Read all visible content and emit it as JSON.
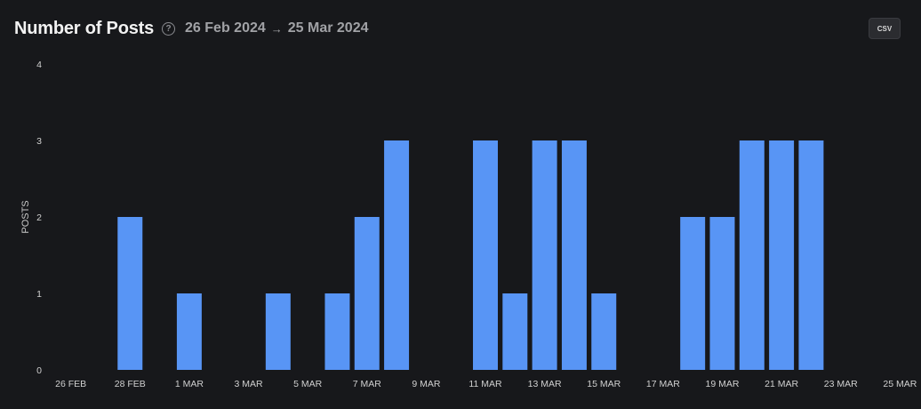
{
  "header": {
    "title": "Number of Posts",
    "help_icon": "question-circle-icon",
    "range_start": "26 Feb 2024",
    "range_arrow": "→",
    "range_end": "25 Mar 2024"
  },
  "toolbar": {
    "csv_label": "CSV"
  },
  "colors": {
    "background": "#17181b",
    "bar": "#5895f5",
    "text": "#d0d0d0"
  },
  "chart_data": {
    "type": "bar",
    "title": "Number of Posts",
    "xlabel": "",
    "ylabel": "POSTS",
    "ylim": [
      0,
      4
    ],
    "yticks": [
      0,
      1,
      2,
      3,
      4
    ],
    "grid": false,
    "categories": [
      "26 FEB",
      "27 FEB",
      "28 FEB",
      "29 FEB",
      "1 MAR",
      "2 MAR",
      "3 MAR",
      "4 MAR",
      "5 MAR",
      "6 MAR",
      "7 MAR",
      "8 MAR",
      "9 MAR",
      "10 MAR",
      "11 MAR",
      "12 MAR",
      "13 MAR",
      "14 MAR",
      "15 MAR",
      "16 MAR",
      "17 MAR",
      "18 MAR",
      "19 MAR",
      "20 MAR",
      "21 MAR",
      "22 MAR",
      "23 MAR",
      "24 MAR",
      "25 MAR"
    ],
    "values": [
      0,
      0,
      2,
      0,
      1,
      0,
      0,
      1,
      0,
      1,
      2,
      3,
      0,
      0,
      3,
      1,
      3,
      3,
      1,
      0,
      0,
      2,
      2,
      3,
      3,
      3,
      0,
      0,
      0
    ],
    "xtick_labels": [
      "26 FEB",
      "28 FEB",
      "1 MAR",
      "3 MAR",
      "5 MAR",
      "7 MAR",
      "9 MAR",
      "11 MAR",
      "13 MAR",
      "15 MAR",
      "17 MAR",
      "19 MAR",
      "21 MAR",
      "23 MAR",
      "25 MAR"
    ]
  }
}
